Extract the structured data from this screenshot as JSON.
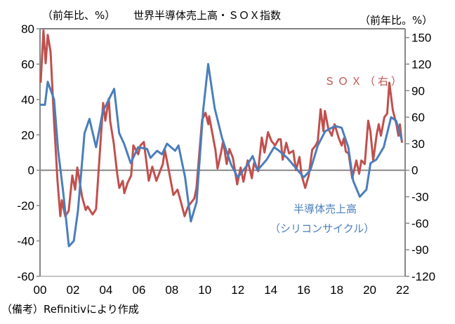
{
  "chart_data": {
    "type": "line",
    "title": "世界半導体売上高・ＳＯＸ指数",
    "y_left_label": "（前年比、%）",
    "y_right_label": "（前年比。%）",
    "note": "（備考）Refinitivにより作成",
    "x_unit": "years since 2000",
    "xlim": [
      0,
      22.15
    ],
    "ylim_left": [
      -60,
      80
    ],
    "ylim_right": [
      -120,
      160
    ],
    "x_ticks": [
      0,
      2,
      4,
      6,
      8,
      10,
      12,
      14,
      16,
      18,
      20,
      22
    ],
    "x_tick_labels": [
      "00",
      "02",
      "04",
      "06",
      "08",
      "10",
      "12",
      "14",
      "16",
      "18",
      "20",
      "22"
    ],
    "y_left_ticks": [
      80,
      60,
      40,
      20,
      0,
      -20,
      -40,
      -60
    ],
    "y_left_tick_labels": [
      "80",
      "60",
      "40",
      "20",
      "0",
      "-20",
      "-40",
      "-60"
    ],
    "y_right_ticks": [
      150,
      120,
      90,
      60,
      30,
      0,
      -30,
      -60,
      -90,
      -120
    ],
    "y_right_tick_labels": [
      "150",
      "120",
      "90",
      "60",
      "30",
      "0",
      "-30",
      "-60",
      "-90",
      "-120"
    ],
    "series": [
      {
        "name": "半導体売上高",
        "name_line2": "（シリコンサイクル）",
        "axis": "left",
        "color": "#4a7ebb",
        "x": [
          0,
          0.3,
          0.47,
          0.85,
          1.1,
          1.4,
          1.75,
          2.05,
          2.3,
          2.7,
          3.0,
          3.4,
          3.8,
          4.5,
          4.8,
          5.1,
          5.5,
          5.95,
          6.5,
          6.7,
          7.1,
          7.4,
          7.7,
          8.2,
          8.4,
          8.8,
          9.15,
          9.5,
          9.9,
          10.2,
          10.6,
          11.05,
          11.6,
          12.0,
          12.5,
          12.9,
          13.2,
          13.75,
          14.2,
          14.5,
          15.0,
          15.45,
          16.0,
          16.4,
          16.85,
          17.3,
          17.9,
          18.3,
          18.7,
          19.0,
          19.4,
          19.8,
          20.05,
          20.4,
          20.85,
          21.3,
          21.6,
          21.95
        ],
        "values": [
          37,
          37,
          50,
          40,
          11,
          -12,
          -43,
          -40,
          -23,
          21,
          29,
          13,
          33,
          46,
          21,
          15,
          4,
          13,
          12,
          7,
          11,
          9,
          15,
          11,
          14,
          -4,
          -29,
          -18,
          34,
          60,
          35,
          18,
          3,
          -4,
          2,
          8,
          0,
          6,
          13,
          11,
          7,
          2,
          -4,
          0,
          14,
          22,
          25,
          24,
          13,
          -6,
          -15,
          -11,
          4,
          6,
          13,
          30,
          28,
          17
        ]
      },
      {
        "name": "ＳＯＸ（右）",
        "axis": "right",
        "color": "#c0504d",
        "x": [
          0.04,
          0.21,
          0.34,
          0.47,
          0.64,
          0.85,
          1.06,
          1.23,
          1.32,
          1.53,
          1.74,
          1.96,
          2.13,
          2.26,
          2.55,
          2.77,
          2.89,
          3.19,
          3.4,
          3.83,
          3.96,
          4.17,
          4.26,
          4.47,
          4.68,
          4.81,
          5.02,
          5.11,
          5.32,
          5.53,
          5.66,
          5.96,
          6.09,
          6.3,
          6.6,
          6.81,
          7.06,
          7.45,
          7.57,
          7.79,
          8.09,
          8.34,
          8.55,
          8.77,
          8.98,
          9.36,
          9.49,
          9.83,
          10.04,
          10.21,
          10.26,
          10.64,
          10.77,
          10.98,
          11.11,
          11.32,
          11.49,
          11.7,
          11.96,
          12.17,
          12.34,
          12.6,
          12.85,
          12.98,
          13.23,
          13.45,
          13.62,
          13.83,
          14.04,
          14.26,
          14.47,
          14.6,
          14.72,
          14.94,
          15.11,
          15.36,
          15.53,
          15.74,
          15.87,
          16.09,
          16.3,
          16.51,
          16.72,
          16.85,
          17.02,
          17.19,
          17.28,
          17.49,
          17.7,
          17.87,
          18.13,
          18.3,
          18.43,
          18.55,
          18.72,
          18.94,
          18.98,
          19.19,
          19.36,
          19.49,
          19.7,
          19.91,
          20.04,
          20.21,
          20.43,
          20.55,
          20.68,
          20.89,
          21.06,
          21.19,
          21.4,
          21.62,
          21.74,
          21.83,
          21.96
        ],
        "values": [
          99,
          158,
          121,
          153,
          134,
          55,
          -12,
          -52,
          -34,
          -52,
          -46,
          -6,
          -22,
          3,
          -30,
          -45,
          -41,
          -50,
          -44,
          76,
          56,
          81,
          55,
          31,
          -4,
          -20,
          -12,
          -26,
          -14,
          -6,
          28,
          18,
          28,
          32,
          -12,
          4,
          -12,
          7,
          23,
          2,
          -28,
          -22,
          -36,
          -52,
          -41,
          -32,
          -20,
          57,
          65,
          52,
          61,
          23,
          2,
          20,
          33,
          7,
          24,
          14,
          -16,
          3,
          -13,
          11,
          -9,
          8,
          -1,
          37,
          20,
          43,
          33,
          28,
          35,
          35,
          12,
          31,
          19,
          22,
          0,
          15,
          -6,
          -20,
          -6,
          23,
          28,
          33,
          69,
          44,
          67,
          47,
          39,
          52,
          36,
          28,
          36,
          21,
          19,
          -9,
          -6,
          11,
          -4,
          11,
          7,
          56,
          44,
          11,
          41,
          52,
          39,
          60,
          64,
          99,
          68,
          52,
          39,
          52,
          31
        ]
      }
    ]
  }
}
